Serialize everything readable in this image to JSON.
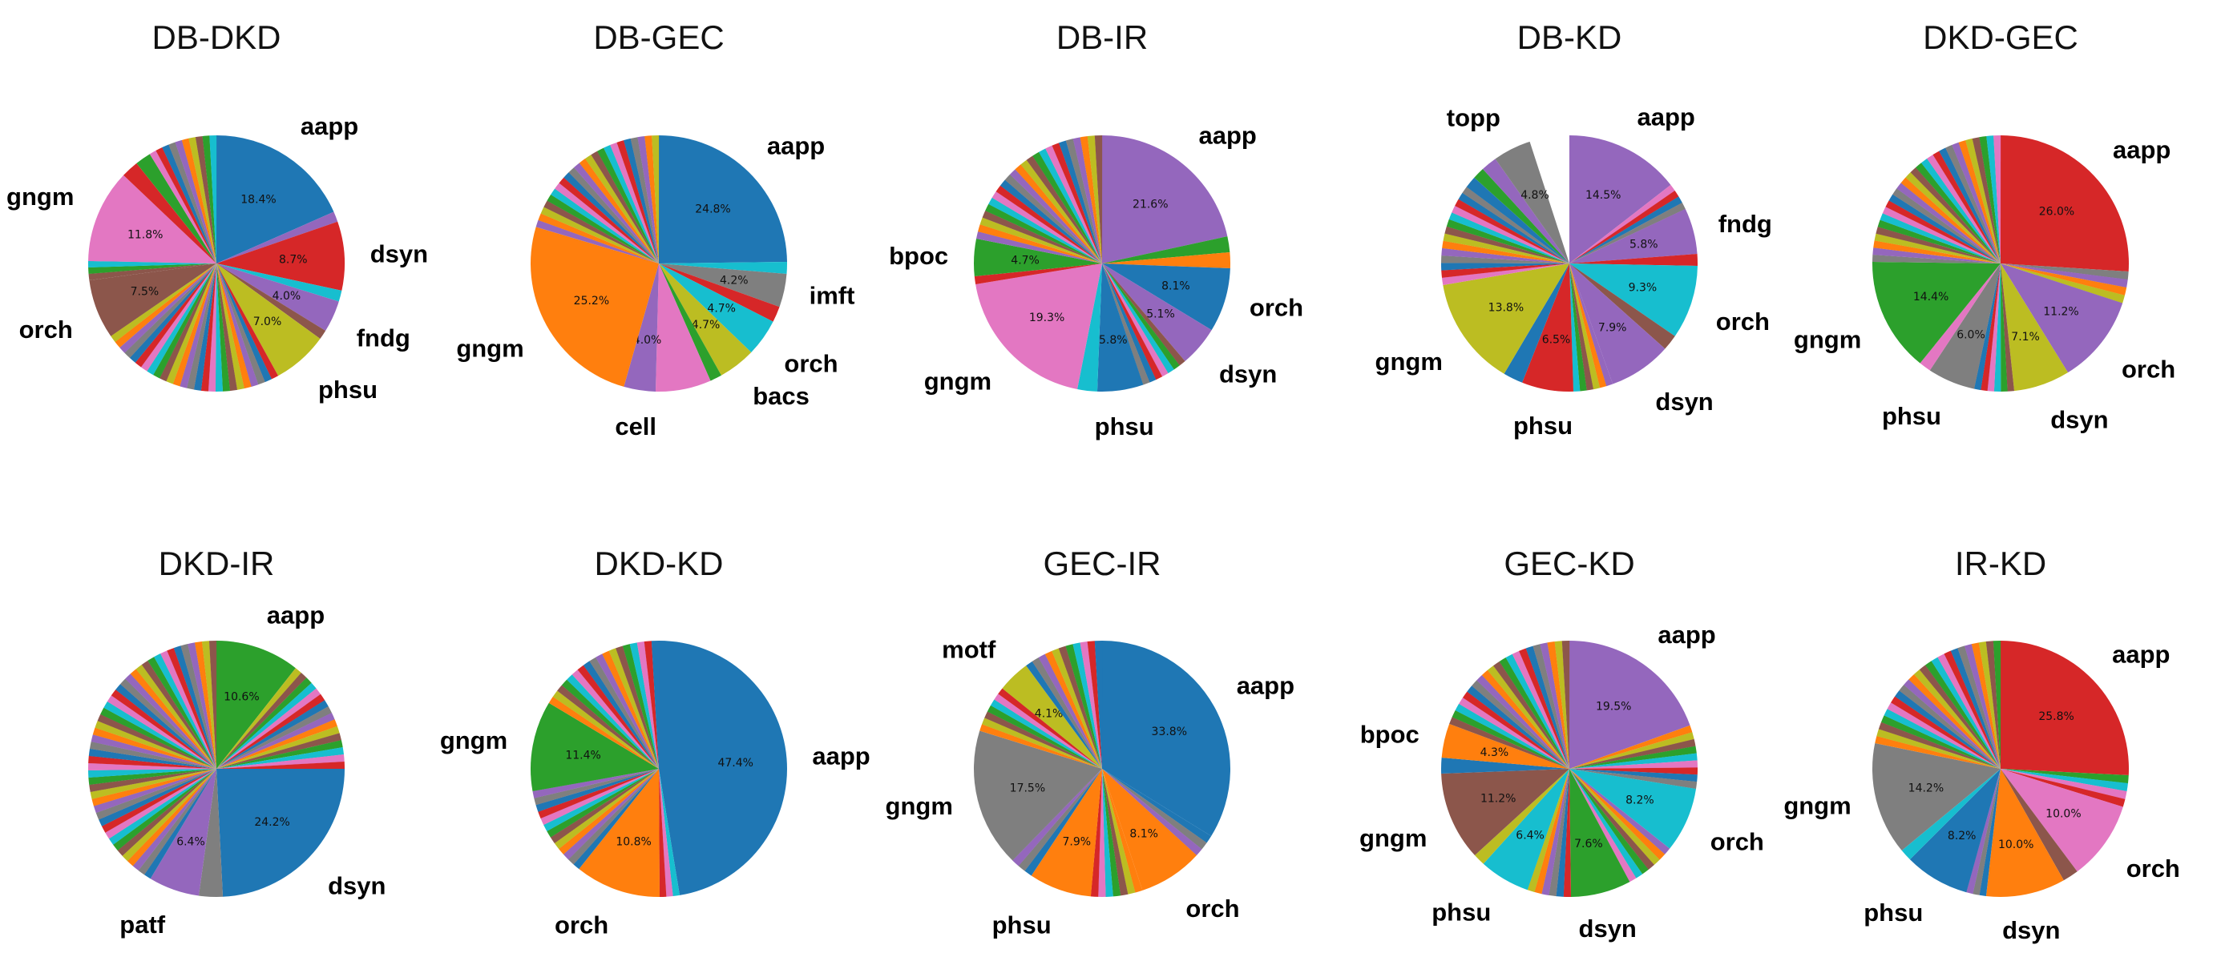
{
  "palette": [
    "#1f77b4",
    "#ff7f0e",
    "#2ca02c",
    "#d62728",
    "#9467bd",
    "#8c564b",
    "#e377c2",
    "#7f7f7f",
    "#bcbd22",
    "#17becf"
  ],
  "chart_data": [
    {
      "type": "pie",
      "title": "DB-DKD",
      "slices": [
        {
          "label": "aapp",
          "pct": 18.4,
          "color": "#1f77b4"
        },
        {
          "label": "",
          "pct": 1.3,
          "color": "#9467bd"
        },
        {
          "label": "dsyn",
          "pct": 8.7,
          "color": "#d62728"
        },
        {
          "label": "",
          "pct": 1.4,
          "color": "#17becf"
        },
        {
          "label": "fndg",
          "pct": 4.0,
          "color": "#9467bd"
        },
        {
          "label": "",
          "pct": 1.2,
          "color": "#8c564b"
        },
        {
          "label": "phsu",
          "pct": 7.0,
          "color": "#bcbd22"
        },
        {
          "label": "",
          "pct": 23.4,
          "color": "mix"
        },
        {
          "label": "orch",
          "pct": 7.5,
          "color": "#8c564b"
        },
        {
          "label": "",
          "pct": 2.4,
          "color": "mix"
        },
        {
          "label": "gngm",
          "pct": 11.8,
          "color": "#e377c2"
        },
        {
          "label": "",
          "pct": 2.2,
          "color": "#d62728"
        },
        {
          "label": "",
          "pct": 2.0,
          "color": "#2ca02c"
        },
        {
          "label": "",
          "pct": 8.7,
          "color": "mix"
        }
      ]
    },
    {
      "type": "pie",
      "title": "DB-GEC",
      "slices": [
        {
          "label": "aapp",
          "pct": 24.8,
          "color": "#1f77b4"
        },
        {
          "label": "",
          "pct": 1.5,
          "color": "#17becf"
        },
        {
          "label": "imft",
          "pct": 4.2,
          "color": "#7f7f7f"
        },
        {
          "label": "",
          "pct": 2.0,
          "color": "#d62728"
        },
        {
          "label": "orch",
          "pct": 4.7,
          "color": "#17becf"
        },
        {
          "label": "bacs",
          "pct": 4.7,
          "color": "#bcbd22"
        },
        {
          "label": "",
          "pct": 1.5,
          "color": "#2ca02c"
        },
        {
          "label": "",
          "pct": 7.0,
          "color": "#e377c2"
        },
        {
          "label": "cell",
          "pct": 4.0,
          "color": "#9467bd"
        },
        {
          "label": "gngm",
          "pct": 25.2,
          "color": "#ff7f0e"
        },
        {
          "label": "",
          "pct": 20.4,
          "color": "mix"
        }
      ]
    },
    {
      "type": "pie",
      "title": "DB-IR",
      "slices": [
        {
          "label": "aapp",
          "pct": 21.6,
          "color": "#9467bd"
        },
        {
          "label": "",
          "pct": 2.0,
          "color": "#2ca02c"
        },
        {
          "label": "",
          "pct": 2.0,
          "color": "#ff7f0e"
        },
        {
          "label": "orch",
          "pct": 8.1,
          "color": "#1f77b4"
        },
        {
          "label": "dsyn",
          "pct": 5.1,
          "color": "#9467bd"
        },
        {
          "label": "",
          "pct": 6.0,
          "color": "mix"
        },
        {
          "label": "phsu",
          "pct": 5.8,
          "color": "#1f77b4"
        },
        {
          "label": "",
          "pct": 2.5,
          "color": "#17becf"
        },
        {
          "label": "gngm",
          "pct": 19.3,
          "color": "#e377c2"
        },
        {
          "label": "",
          "pct": 1.0,
          "color": "#d62728"
        },
        {
          "label": "bpoc",
          "pct": 4.7,
          "color": "#2ca02c"
        },
        {
          "label": "",
          "pct": 21.9,
          "color": "mix"
        }
      ]
    },
    {
      "type": "pie",
      "title": "DB-KD",
      "slices": [
        {
          "label": "aapp",
          "pct": 14.5,
          "color": "#9467bd"
        },
        {
          "label": "",
          "pct": 3.5,
          "color": "mix"
        },
        {
          "label": "fndg",
          "pct": 5.8,
          "color": "#9467bd"
        },
        {
          "label": "",
          "pct": 1.5,
          "color": "#d62728"
        },
        {
          "label": "orch",
          "pct": 9.3,
          "color": "#17becf"
        },
        {
          "label": "",
          "pct": 2.0,
          "color": "#8c564b"
        },
        {
          "label": "dsyn",
          "pct": 7.9,
          "color": "#9467bd"
        },
        {
          "label": "",
          "pct": 5.0,
          "color": "mix"
        },
        {
          "label": "phsu",
          "pct": 6.5,
          "color": "#d62728"
        },
        {
          "label": "",
          "pct": 2.5,
          "color": "#1f77b4"
        },
        {
          "label": "gngm",
          "pct": 13.8,
          "color": "#bcbd22"
        },
        {
          "label": "",
          "pct": 12.9,
          "color": "mix"
        },
        {
          "label": "",
          "pct": 1.5,
          "color": "#1f77b4"
        },
        {
          "label": "",
          "pct": 1.5,
          "color": "#2ca02c"
        },
        {
          "label": "",
          "pct": 2.0,
          "color": "#9467bd"
        },
        {
          "label": "topp",
          "pct": 4.8,
          "color": "#7f7f7f"
        }
      ]
    },
    {
      "type": "pie",
      "title": "DKD-GEC",
      "slices": [
        {
          "label": "aapp",
          "pct": 26.0,
          "color": "#d62728"
        },
        {
          "label": "",
          "pct": 4.0,
          "color": "mix"
        },
        {
          "label": "orch",
          "pct": 11.2,
          "color": "#9467bd"
        },
        {
          "label": "dsyn",
          "pct": 7.1,
          "color": "#bcbd22"
        },
        {
          "label": "",
          "pct": 5.0,
          "color": "mix"
        },
        {
          "label": "phsu",
          "pct": 6.0,
          "color": "#7f7f7f"
        },
        {
          "label": "",
          "pct": 1.5,
          "color": "#e377c2"
        },
        {
          "label": "gngm",
          "pct": 14.4,
          "color": "#2ca02c"
        },
        {
          "label": "",
          "pct": 24.8,
          "color": "mix"
        }
      ]
    },
    {
      "type": "pie",
      "title": "DKD-IR",
      "slices": [
        {
          "label": "aapp",
          "pct": 10.6,
          "color": "#2ca02c"
        },
        {
          "label": "",
          "pct": 14.4,
          "color": "mix"
        },
        {
          "label": "dsyn",
          "pct": 24.2,
          "color": "#1f77b4"
        },
        {
          "label": "",
          "pct": 3.0,
          "color": "#7f7f7f"
        },
        {
          "label": "patf",
          "pct": 6.4,
          "color": "#9467bd"
        },
        {
          "label": "",
          "pct": 41.4,
          "color": "mix"
        }
      ]
    },
    {
      "type": "pie",
      "title": "DKD-KD",
      "slices": [
        {
          "label": "aapp",
          "pct": 47.4,
          "color": "#1f77b4"
        },
        {
          "label": "",
          "pct": 2.5,
          "color": "mix"
        },
        {
          "label": "orch",
          "pct": 10.8,
          "color": "#ff7f0e"
        },
        {
          "label": "",
          "pct": 11.5,
          "color": "mix"
        },
        {
          "label": "gngm",
          "pct": 11.4,
          "color": "#2ca02c"
        },
        {
          "label": "",
          "pct": 16.4,
          "color": "mix"
        }
      ]
    },
    {
      "type": "pie",
      "title": "GEC-IR",
      "slices": [
        {
          "label": "aapp",
          "pct": 33.8,
          "color": "#1f77b4"
        },
        {
          "label": "",
          "pct": 3.0,
          "color": "mix"
        },
        {
          "label": "orch",
          "pct": 8.1,
          "color": "#ff7f0e"
        },
        {
          "label": "",
          "pct": 6.5,
          "color": "mix"
        },
        {
          "label": "phsu",
          "pct": 7.9,
          "color": "#ff7f0e"
        },
        {
          "label": "",
          "pct": 3.0,
          "color": "mix"
        },
        {
          "label": "gngm",
          "pct": 17.5,
          "color": "#7f7f7f"
        },
        {
          "label": "",
          "pct": 6.0,
          "color": "mix"
        },
        {
          "label": "motf",
          "pct": 4.1,
          "color": "#bcbd22"
        },
        {
          "label": "",
          "pct": 10.1,
          "color": "mix"
        }
      ]
    },
    {
      "type": "pie",
      "title": "GEC-KD",
      "slices": [
        {
          "label": "aapp",
          "pct": 19.5,
          "color": "#9467bd"
        },
        {
          "label": "",
          "pct": 8.0,
          "color": "mix"
        },
        {
          "label": "orch",
          "pct": 8.2,
          "color": "#17becf"
        },
        {
          "label": "",
          "pct": 6.5,
          "color": "mix"
        },
        {
          "label": "dsyn",
          "pct": 7.6,
          "color": "#2ca02c"
        },
        {
          "label": "",
          "pct": 5.5,
          "color": "mix"
        },
        {
          "label": "phsu",
          "pct": 6.4,
          "color": "#17becf"
        },
        {
          "label": "",
          "pct": 1.5,
          "color": "#bcbd22"
        },
        {
          "label": "gngm",
          "pct": 11.2,
          "color": "#8c564b"
        },
        {
          "label": "",
          "pct": 2.0,
          "color": "#1f77b4"
        },
        {
          "label": "bpoc",
          "pct": 4.3,
          "color": "#ff7f0e"
        },
        {
          "label": "",
          "pct": 19.3,
          "color": "mix"
        }
      ]
    },
    {
      "type": "pie",
      "title": "IR-KD",
      "slices": [
        {
          "label": "aapp",
          "pct": 25.8,
          "color": "#d62728"
        },
        {
          "label": "",
          "pct": 4.0,
          "color": "mix"
        },
        {
          "label": "orch",
          "pct": 10.0,
          "color": "#e377c2"
        },
        {
          "label": "",
          "pct": 2.0,
          "color": "#8c564b"
        },
        {
          "label": "dsyn",
          "pct": 10.0,
          "color": "#ff7f0e"
        },
        {
          "label": "",
          "pct": 2.5,
          "color": "mix"
        },
        {
          "label": "phsu",
          "pct": 8.2,
          "color": "#1f77b4"
        },
        {
          "label": "",
          "pct": 1.5,
          "color": "#17becf"
        },
        {
          "label": "gngm",
          "pct": 14.2,
          "color": "#7f7f7f"
        },
        {
          "label": "",
          "pct": 21.8,
          "color": "mix"
        }
      ]
    }
  ]
}
